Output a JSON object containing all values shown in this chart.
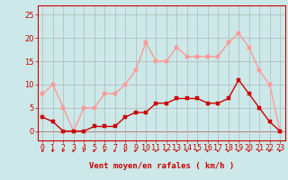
{
  "x": [
    0,
    1,
    2,
    3,
    4,
    5,
    6,
    7,
    8,
    9,
    10,
    11,
    12,
    13,
    14,
    15,
    16,
    17,
    18,
    19,
    20,
    21,
    22,
    23
  ],
  "wind_avg": [
    3,
    2,
    0,
    0,
    0,
    1,
    1,
    1,
    3,
    4,
    4,
    6,
    6,
    7,
    7,
    7,
    6,
    6,
    7,
    11,
    8,
    5,
    2,
    0
  ],
  "wind_gust": [
    8,
    10,
    5,
    0,
    5,
    5,
    8,
    8,
    10,
    13,
    19,
    15,
    15,
    18,
    16,
    16,
    16,
    16,
    19,
    21,
    18,
    13,
    10,
    0
  ],
  "avg_color": "#cc0000",
  "gust_color": "#ff9999",
  "bg_color": "#cce8e8",
  "grid_color": "#aaaaaa",
  "xlabel": "Vent moyen/en rafales ( km/h )",
  "xlabel_color": "#cc0000",
  "xlabel_fontsize": 6.5,
  "ytick_labels": [
    "0",
    "5",
    "10",
    "15",
    "20",
    "25"
  ],
  "ytick_values": [
    0,
    5,
    10,
    15,
    20,
    25
  ],
  "ylim": [
    -2,
    27
  ],
  "xlim": [
    -0.5,
    23.5
  ],
  "tick_fontsize": 6,
  "linewidth": 1.0,
  "markersize": 2.5
}
